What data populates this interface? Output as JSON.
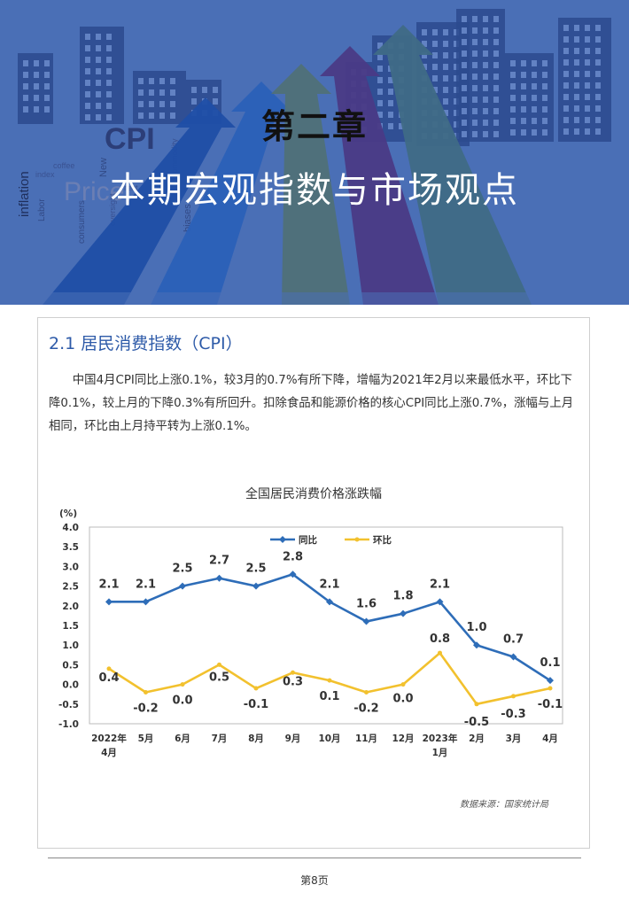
{
  "banner": {
    "chapter_number": "第二章",
    "chapter_title": "本期宏观指数与市场观点",
    "artwork_words": [
      "CPI",
      "Price",
      "inflation",
      "Labor",
      "consumers",
      "coffee",
      "New",
      "biases",
      "rent",
      "oversight",
      "commodity",
      "index"
    ]
  },
  "section": {
    "heading": "2.1 居民消费指数（CPI）",
    "body": "中国4月CPI同比上涨0.1%，较3月的0.7%有所下降，增幅为2021年2月以来最低水平，环比下降0.1%，较上月的下降0.3%有所回升。扣除食品和能源价格的核心CPI同比上涨0.7%，涨幅与上月相同，环比由上月持平转为上涨0.1%。"
  },
  "chart_data": {
    "type": "line",
    "title": "全国居民消费价格涨跌幅",
    "ylabel": "(%)",
    "ylim": [
      -1.0,
      4.0
    ],
    "yticks": [
      "4.0",
      "3.5",
      "3.0",
      "2.5",
      "2.0",
      "1.5",
      "1.0",
      "0.5",
      "0.0",
      "-0.5",
      "-1.0"
    ],
    "categories": [
      {
        "line1": "2022年",
        "line2": "4月"
      },
      {
        "line1": "5月",
        "line2": ""
      },
      {
        "line1": "6月",
        "line2": ""
      },
      {
        "line1": "7月",
        "line2": ""
      },
      {
        "line1": "8月",
        "line2": ""
      },
      {
        "line1": "9月",
        "line2": ""
      },
      {
        "line1": "10月",
        "line2": ""
      },
      {
        "line1": "11月",
        "line2": ""
      },
      {
        "line1": "12月",
        "line2": ""
      },
      {
        "line1": "2023年",
        "line2": "1月"
      },
      {
        "line1": "2月",
        "line2": ""
      },
      {
        "line1": "3月",
        "line2": ""
      },
      {
        "line1": "4月",
        "line2": ""
      }
    ],
    "series": [
      {
        "name": "同比",
        "color": "#2e6db8",
        "values": [
          2.1,
          2.1,
          2.5,
          2.7,
          2.5,
          2.8,
          2.1,
          1.6,
          1.8,
          2.1,
          1.0,
          0.7,
          0.1
        ],
        "labels": [
          "2.1",
          "2.1",
          "2.5",
          "2.7",
          "2.5",
          "2.8",
          "2.1",
          "1.6",
          "1.8",
          "2.1",
          "1.0",
          "0.7",
          "0.1"
        ]
      },
      {
        "name": "环比",
        "color": "#f2c12e",
        "values": [
          0.4,
          -0.2,
          0.0,
          0.5,
          -0.1,
          0.3,
          0.1,
          -0.2,
          0.0,
          0.8,
          -0.5,
          -0.3,
          -0.1
        ],
        "labels": [
          "0.4",
          "-0.2",
          "0.0",
          "0.5",
          "-0.1",
          "0.3",
          "0.1",
          "-0.2",
          "0.0",
          "0.8",
          "-0.5",
          "-0.3",
          "-0.1"
        ]
      }
    ],
    "legend_position": "top-center",
    "grid": false
  },
  "source_note": "数据来源：国家统计局",
  "page_number": "第8页"
}
